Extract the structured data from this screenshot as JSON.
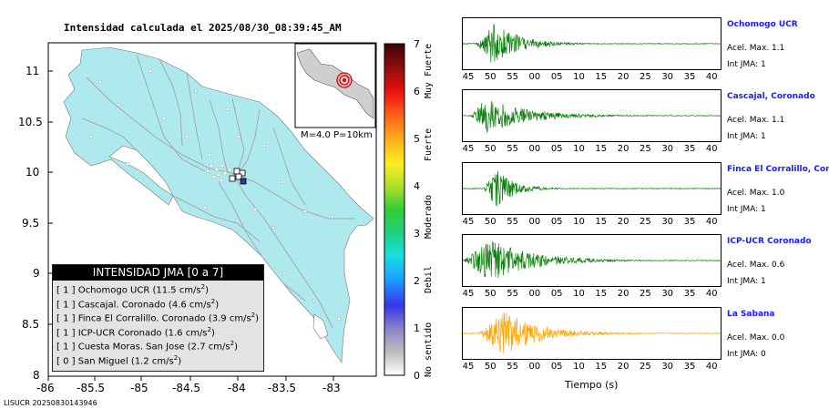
{
  "map": {
    "title": "Intensidad calculada el 2025/08/30_08:39:45_AM",
    "lat_ticks": [
      "11",
      "10.5",
      "10",
      "9.5",
      "9",
      "8.5",
      "8"
    ],
    "lon_ticks": [
      "-86",
      "-85.5",
      "-85",
      "-84.5",
      "-84",
      "-83.5",
      "-83"
    ],
    "inset_caption": "M=4.0 P=10km",
    "footer": "LISUCR 20250830143946",
    "colors": {
      "land": "#aeeaed",
      "water": "#ffffff",
      "roads": "#aaaaaa"
    }
  },
  "legend": {
    "title": "INTENSIDAD JMA [0 a 7]",
    "rows": [
      {
        "level": "[ 1 ]",
        "text": "Ochomogo UCR (11.5 cm/s",
        "sup": "2",
        "end": ")"
      },
      {
        "level": "[ 1 ]",
        "text": "Cascajal. Coronado (4.6 cm/s",
        "sup": "2",
        "end": ")"
      },
      {
        "level": "[ 1 ]",
        "text": "Finca El Corralillo. Coronado (3.9 cm/s",
        "sup": "2",
        "end": ")"
      },
      {
        "level": "[ 1 ]",
        "text": "ICP-UCR Coronado (1.6 cm/s",
        "sup": "2",
        "end": ")"
      },
      {
        "level": "[ 1 ]",
        "text": "Cuesta Moras. San Jose (2.7 cm/s",
        "sup": "2",
        "end": ")"
      },
      {
        "level": "[ 0 ]",
        "text": "San Miguel (1.2 cm/s",
        "sup": "2",
        "end": ")"
      }
    ]
  },
  "scale": {
    "numbers": [
      "7",
      "6",
      "5",
      "4",
      "3",
      "2",
      "1",
      "0"
    ],
    "words": [
      "Muy Fuerte",
      "Fuerte",
      "Moderado",
      "Debil",
      "No sentido"
    ]
  },
  "stations": [
    {
      "name": "Ochomogo UCR",
      "acel": "Acel. Max. 1.1",
      "int": "Int JMA: 1",
      "color": "#0a7d0a"
    },
    {
      "name": "Cascajal, Coronado",
      "acel": "Acel. Max. 1.1",
      "int": "Int JMA: 1",
      "color": "#0a7d0a"
    },
    {
      "name": "Finca El Corralillo, Coronado",
      "acel": "Acel. Max. 1.0",
      "int": "Int JMA: 1",
      "color": "#0a7d0a"
    },
    {
      "name": "ICP-UCR Coronado",
      "acel": "Acel. Max. 0.6",
      "int": "Int JMA: 1",
      "color": "#0a7d0a"
    },
    {
      "name": "La Sabana",
      "acel": "Acel. Max. 0.0",
      "int": "Int JMA: 0",
      "color": "#ffa500"
    }
  ],
  "time_axis": {
    "ticks": [
      "45",
      "50",
      "55",
      "00",
      "05",
      "10",
      "15",
      "20",
      "25",
      "30",
      "35",
      "40"
    ],
    "label": "Tiempo (s)"
  }
}
